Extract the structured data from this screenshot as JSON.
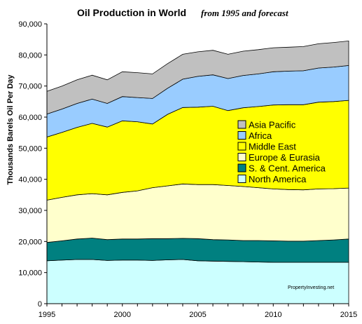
{
  "chart_data": {
    "type": "area",
    "stacked": true,
    "title": "Oil Production in World",
    "subtitle": "from 1995 and forecast",
    "xlabel": "",
    "ylabel": "Thousands Barels Oil Per Day",
    "xlim": [
      1995,
      2015
    ],
    "ylim": [
      0,
      90000
    ],
    "x_ticks": [
      1995,
      2000,
      2005,
      2010,
      2015
    ],
    "y_ticks": [
      0,
      10000,
      20000,
      30000,
      40000,
      50000,
      60000,
      70000,
      80000,
      90000
    ],
    "y_tick_labels": [
      "0",
      "10,000",
      "20,000",
      "30,000",
      "40,000",
      "50,000",
      "60,000",
      "70,000",
      "80,000",
      "90,000"
    ],
    "grid": false,
    "legend_position": "right-center",
    "watermark": "PropertyInvesting.net",
    "x": [
      1995,
      1996,
      1997,
      1998,
      1999,
      2000,
      2001,
      2002,
      2003,
      2004,
      2005,
      2006,
      2007,
      2008,
      2009,
      2010,
      2011,
      2012,
      2013,
      2014,
      2015
    ],
    "series": [
      {
        "name": "North America",
        "color": "#ccffff",
        "values": [
          13800,
          14000,
          14200,
          14200,
          13900,
          14000,
          14000,
          13900,
          14100,
          14200,
          13800,
          13700,
          13600,
          13500,
          13400,
          13300,
          13300,
          13300,
          13300,
          13300,
          13300
        ]
      },
      {
        "name": "S. & Cent. America",
        "color": "#008080",
        "values": [
          5900,
          6200,
          6600,
          6900,
          6700,
          6800,
          6800,
          7000,
          6800,
          6800,
          7100,
          6900,
          6900,
          6800,
          6900,
          6900,
          6800,
          6800,
          7000,
          7200,
          7500
        ]
      },
      {
        "name": "Europe & Eurasia",
        "color": "#ffffcc",
        "values": [
          13600,
          14000,
          14200,
          14300,
          14400,
          15000,
          15500,
          16400,
          17000,
          17500,
          17400,
          17700,
          17500,
          17400,
          17000,
          16700,
          16600,
          16500,
          16600,
          16500,
          16400
        ]
      },
      {
        "name": "Middle East",
        "color": "#ffff00",
        "values": [
          20300,
          20900,
          21700,
          22600,
          21800,
          23000,
          22200,
          20500,
          23000,
          24600,
          24900,
          25200,
          24100,
          25300,
          26100,
          27000,
          27300,
          27400,
          27900,
          28000,
          28200
        ]
      },
      {
        "name": "Africa",
        "color": "#99ccff",
        "values": [
          7400,
          7500,
          7700,
          7800,
          7600,
          7800,
          7800,
          8200,
          8400,
          9100,
          9900,
          10100,
          10300,
          10400,
          10500,
          10700,
          10800,
          10900,
          11000,
          11100,
          11200
        ]
      },
      {
        "name": "Asia Pacific",
        "color": "#c0c0c0",
        "values": [
          7300,
          7400,
          7600,
          7700,
          7600,
          8000,
          8000,
          7900,
          7900,
          8000,
          7900,
          7900,
          7800,
          7800,
          7800,
          7700,
          7700,
          7800,
          7800,
          7900,
          7900
        ]
      }
    ],
    "legend_order": [
      "Asia Pacific",
      "Africa",
      "Middle East",
      "Europe & Eurasia",
      "S. & Cent. America",
      "North America"
    ]
  }
}
